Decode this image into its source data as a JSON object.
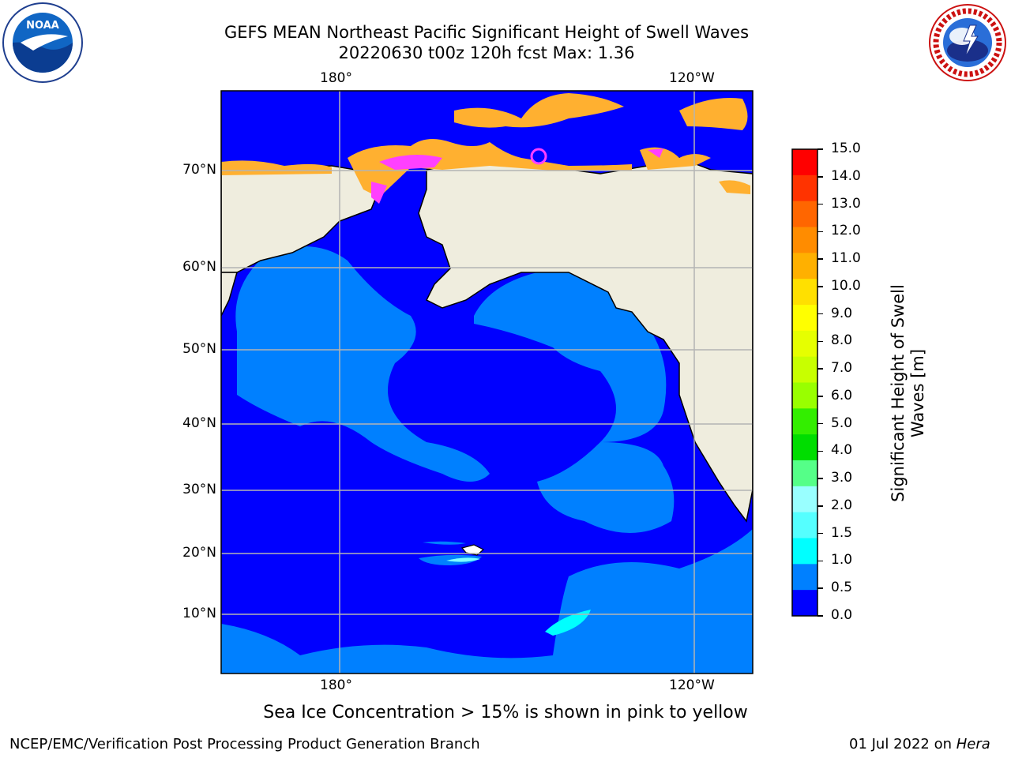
{
  "header": {
    "title_line1": "GEFS MEAN Northeast Pacific Significant Height of Swell Waves",
    "title_line2": "20220630 t00z 120h fcst   Max: 1.36"
  },
  "logos": {
    "left": {
      "text": "NOAA",
      "ring_text": "NATIONAL OCEANIC AND ATMOSPHERIC ADMINISTRATION · U.S. DEPARTMENT OF COMMERCE"
    },
    "right": {
      "ring_text": "NATIONAL WEATHER SERVICE"
    }
  },
  "map": {
    "lon_labels": {
      "left": "180°",
      "right": "120°W"
    },
    "lat_labels": [
      "70°N",
      "60°N",
      "50°N",
      "40°N",
      "30°N",
      "20°N",
      "10°N"
    ],
    "colors": {
      "ocean_deep": "#0000ff",
      "ocean_light": "#0080ff",
      "cyan": "#00ffff",
      "land": "#efedde",
      "ice_orange": "#ffb030",
      "ice_pink": "#ff40ff",
      "grid": "#b4b4b4"
    }
  },
  "colorbar": {
    "title": "Significant Height of Swell Waves [m]",
    "ticks": [
      "15.0",
      "14.0",
      "13.0",
      "12.0",
      "11.0",
      "10.0",
      "9.0",
      "8.0",
      "7.0",
      "6.0",
      "5.0",
      "4.0",
      "3.0",
      "2.0",
      "1.5",
      "1.0",
      "0.5",
      "0.0"
    ],
    "colors": [
      "#ff0000",
      "#ff3300",
      "#ff6600",
      "#ff8c00",
      "#ffb000",
      "#ffe000",
      "#ffff00",
      "#e6ff00",
      "#c8ff00",
      "#99ff00",
      "#33ee00",
      "#00dd00",
      "#55ff88",
      "#99ffff",
      "#55ffff",
      "#00ffff",
      "#0080ff",
      "#0000ff"
    ]
  },
  "footer": {
    "note": "Sea Ice Concentration > 15% is shown in pink to yellow",
    "left": "NCEP/EMC/Verification Post Processing Product Generation Branch",
    "right_prefix": "01 Jul 2022 on ",
    "right_host": "Hera"
  }
}
